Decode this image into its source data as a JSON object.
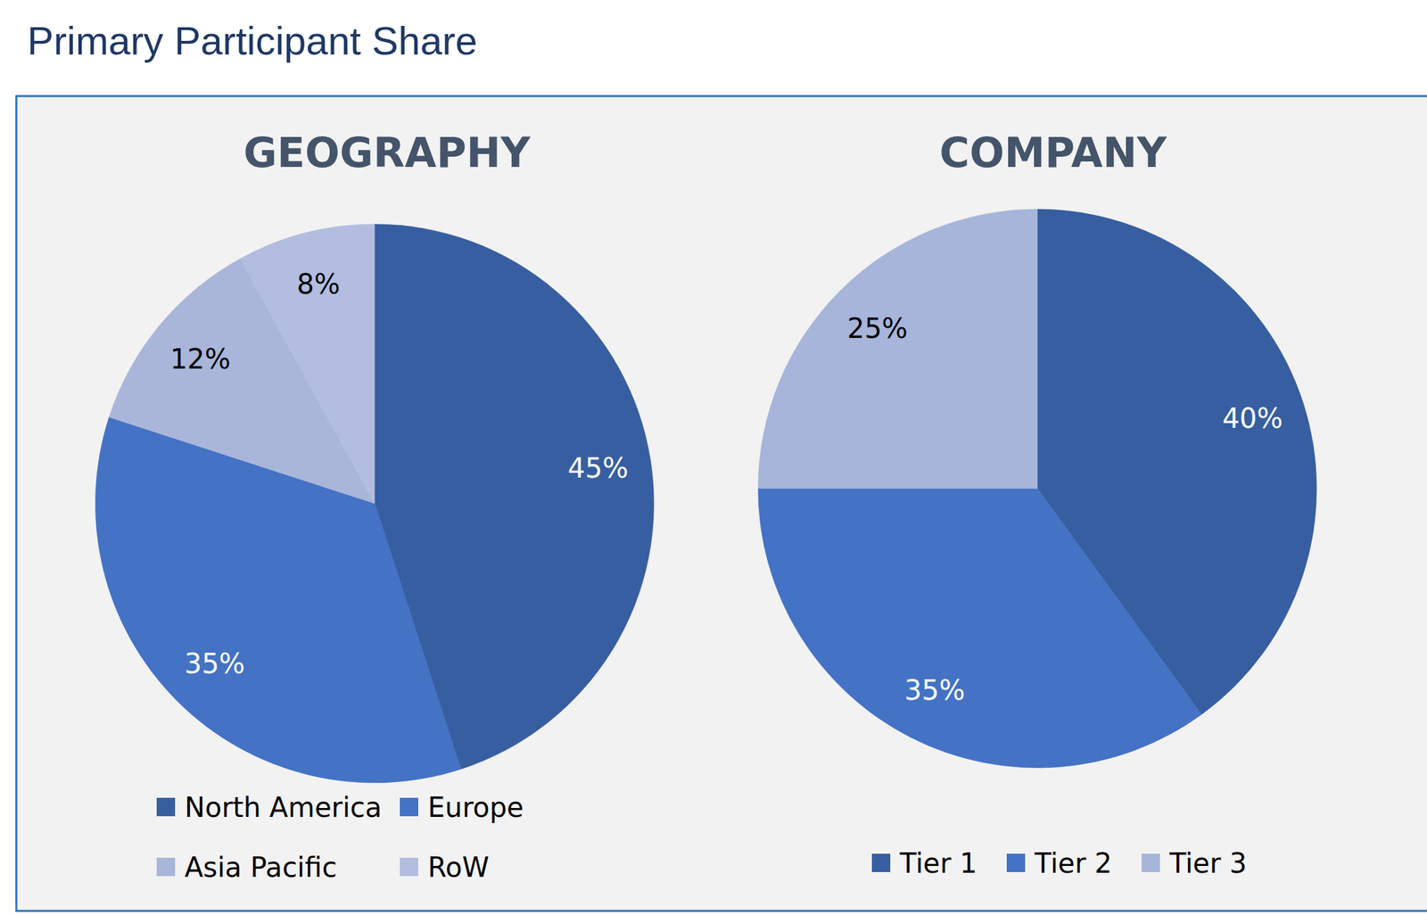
{
  "title": "Primary Participant Share",
  "chart_data": [
    {
      "type": "pie",
      "title": "GEOGRAPHY",
      "categories": [
        "North America",
        "Europe",
        "Asia Pacific",
        "RoW"
      ],
      "values": [
        45,
        35,
        12,
        8
      ],
      "value_labels": [
        "45%",
        "35%",
        "12%",
        "8%"
      ],
      "colors": [
        "#375ea0",
        "#4472c4",
        "#a9b6da",
        "#b3bde0"
      ],
      "data_labels": true,
      "legend": "bottom"
    },
    {
      "type": "pie",
      "title": "COMPANY",
      "categories": [
        "Tier 1",
        "Tier 2",
        "Tier 3"
      ],
      "values": [
        40,
        35,
        25
      ],
      "value_labels": [
        "40%",
        "35%",
        "25%"
      ],
      "colors": [
        "#375ea0",
        "#4472c4",
        "#a7b5da"
      ],
      "data_labels": true,
      "legend": "bottom"
    }
  ]
}
